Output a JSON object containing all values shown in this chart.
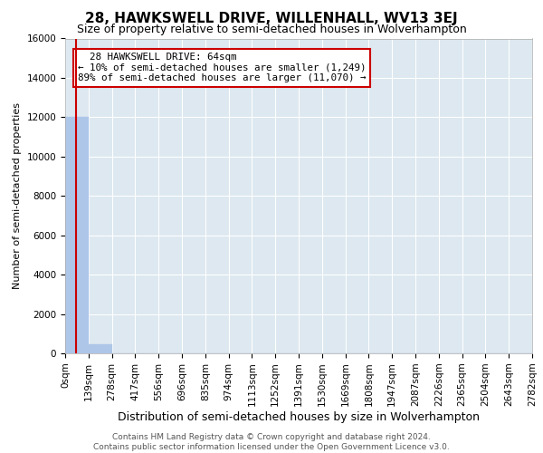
{
  "title": "28, HAWKSWELL DRIVE, WILLENHALL, WV13 3EJ",
  "subtitle": "Size of property relative to semi-detached houses in Wolverhampton",
  "xlabel": "Distribution of semi-detached houses by size in Wolverhampton",
  "ylabel": "Number of semi-detached properties",
  "footer_line1": "Contains HM Land Registry data © Crown copyright and database right 2024.",
  "footer_line2": "Contains public sector information licensed under the Open Government Licence v3.0.",
  "property_size": 64,
  "property_label": "28 HAWKSWELL DRIVE: 64sqm",
  "pct_smaller": 10,
  "count_smaller": 1249,
  "pct_larger": 89,
  "count_larger": 11070,
  "bin_edges": [
    0,
    139,
    278,
    417,
    556,
    696,
    835,
    974,
    1113,
    1252,
    1391,
    1530,
    1669,
    1808,
    1947,
    2087,
    2226,
    2365,
    2504,
    2643,
    2782
  ],
  "bar_heights": [
    12000,
    450,
    0,
    0,
    0,
    0,
    0,
    0,
    0,
    0,
    0,
    0,
    0,
    0,
    0,
    0,
    0,
    0,
    0,
    0
  ],
  "bar_color": "#aec6e8",
  "bar_edgecolor": "#aec6e8",
  "ylim": [
    0,
    16000
  ],
  "yticks": [
    0,
    2000,
    4000,
    6000,
    8000,
    10000,
    12000,
    14000,
    16000
  ],
  "vline_color": "#cc0000",
  "vline_x": 64,
  "annotation_box_color": "#cc0000",
  "background_color": "#dde8f0",
  "grid_color": "#ffffff",
  "title_fontsize": 11,
  "subtitle_fontsize": 9,
  "ylabel_fontsize": 8,
  "xlabel_fontsize": 9,
  "footer_fontsize": 6.5,
  "tick_fontsize": 7.5
}
